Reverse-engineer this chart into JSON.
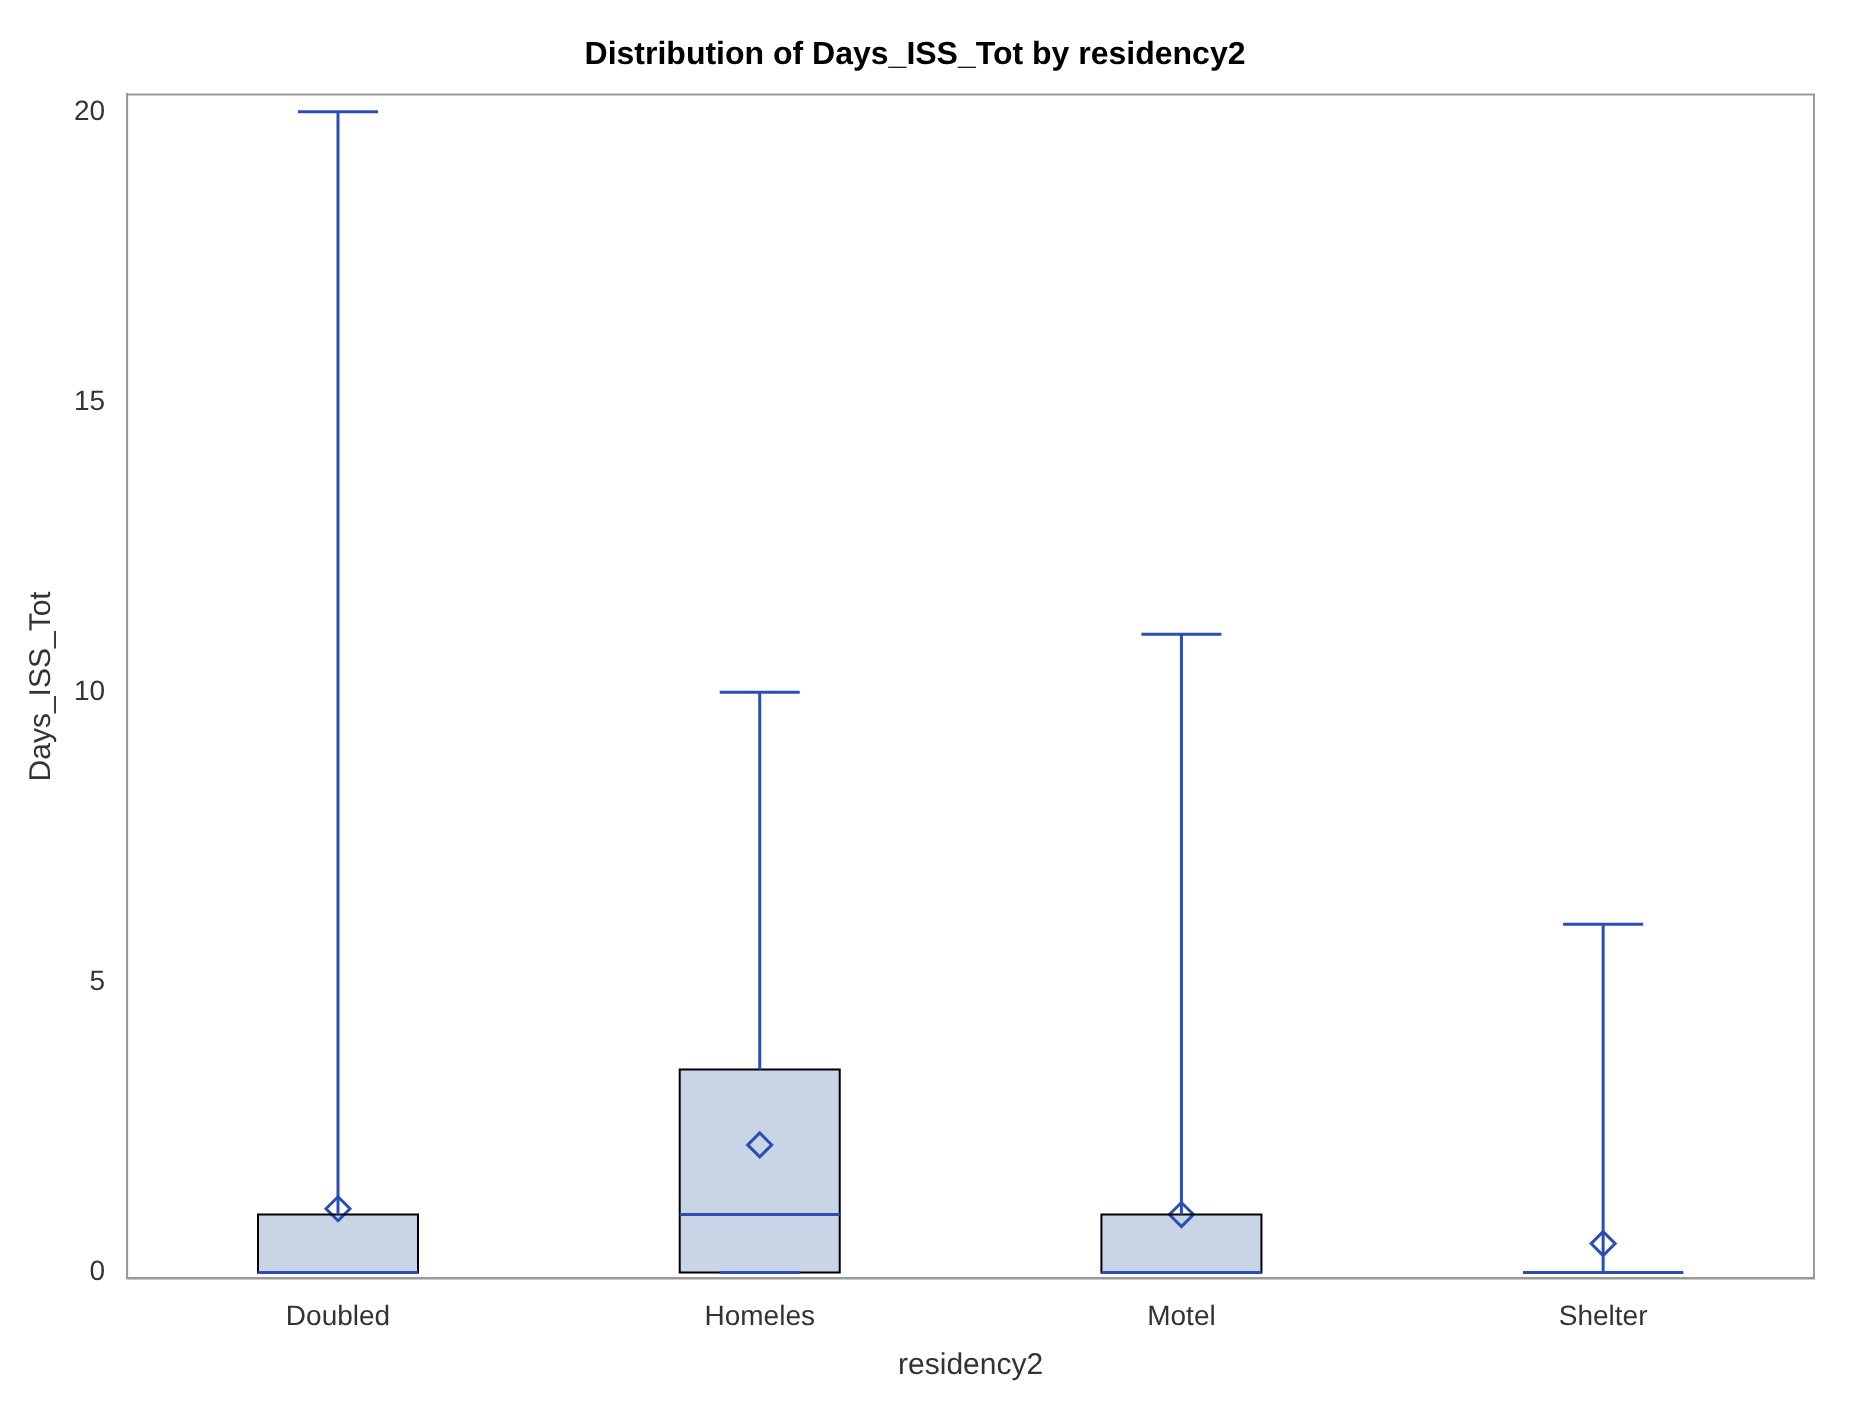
{
  "chart_data": {
    "type": "box",
    "title": "Distribution of Days_ISS_Tot by residency2",
    "xlabel": "residency2",
    "ylabel": "Days_ISS_Tot",
    "categories": [
      "Doubled",
      "Homeles",
      "Motel",
      "Shelter"
    ],
    "color": "#c9d5e6",
    "boxes": [
      {
        "low": 0,
        "q1": 0,
        "median": 0,
        "q3": 1,
        "high": 20,
        "mean": 1.1
      },
      {
        "low": 0,
        "q1": 0,
        "median": 1,
        "q3": 3.5,
        "high": 10,
        "mean": 2.2
      },
      {
        "low": 0,
        "q1": 0,
        "median": 0,
        "q3": 1,
        "high": 11,
        "mean": 1
      },
      {
        "low": 0,
        "q1": 0,
        "median": 0,
        "q3": 0,
        "high": 6,
        "mean": 0.5
      }
    ],
    "ylim": [
      -0.1,
      20.3
    ],
    "yticks": [
      0,
      5,
      10,
      15,
      20
    ]
  }
}
